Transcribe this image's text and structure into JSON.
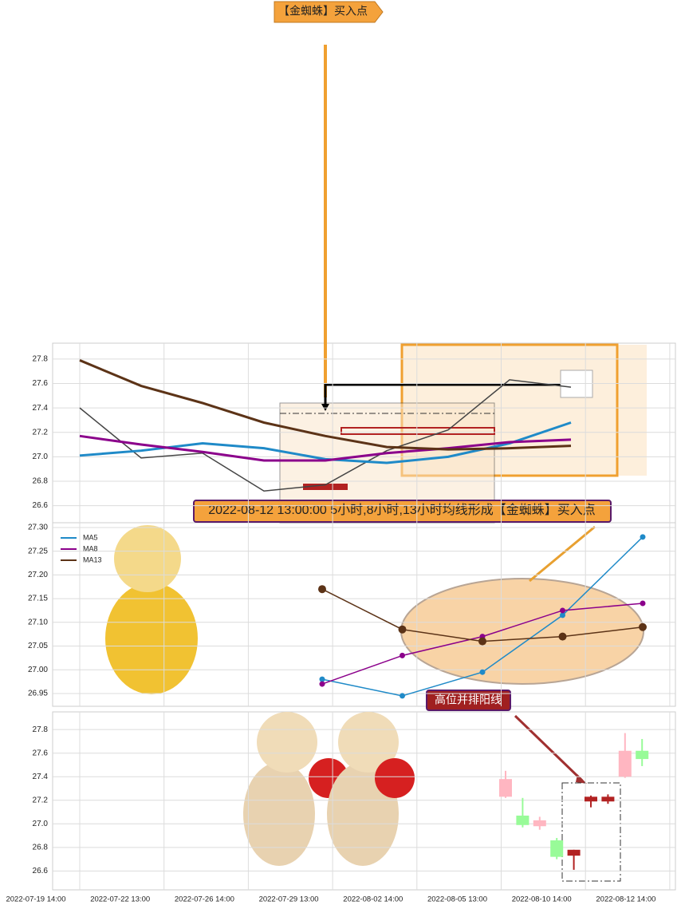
{
  "chart_data": [
    {
      "type": "line",
      "annotations": [
        "【金蜘蛛】买入点",
        "2022-08-12 13:00:00 5小时,8小时,13小时均线形成【金蜘蛛】买入点"
      ],
      "categories": [
        null,
        null,
        null,
        null,
        null,
        null,
        null,
        null,
        null
      ],
      "series": [
        {
          "color": "#444444",
          "values": [
            27.4,
            26.99,
            27.03,
            26.72,
            26.77,
            27.05,
            27.22,
            27.63,
            27.57
          ]
        },
        {
          "color": "#1f8ac8",
          "values": [
            27.01,
            27.05,
            27.11,
            27.07,
            26.98,
            26.95,
            27.0,
            27.11,
            27.28
          ]
        },
        {
          "color": "#8b008b",
          "values": [
            27.17,
            27.1,
            27.04,
            26.97,
            26.97,
            27.03,
            27.07,
            27.12,
            27.14
          ]
        },
        {
          "color": "#5c3317",
          "values": [
            27.79,
            27.58,
            27.44,
            27.28,
            27.17,
            27.08,
            27.06,
            27.07,
            27.09
          ]
        }
      ],
      "ylim": [
        26.46,
        27.93
      ],
      "yticks": [
        26.6,
        26.8,
        {
          "value": 27,
          "label": "27.0"
        },
        27.2,
        27.4,
        27.6,
        27.8
      ],
      "grid": true
    },
    {
      "type": "line",
      "categories": [
        null,
        null,
        null,
        null,
        null
      ],
      "series": [
        {
          "name": "MA5",
          "color": "#1f8ac8",
          "values": [
            26.98,
            26.945,
            26.995,
            27.115,
            27.28
          ]
        },
        {
          "name": "MA8",
          "color": "#8b008b",
          "values": [
            26.97,
            27.03,
            27.07,
            27.125,
            27.14
          ]
        },
        {
          "name": "MA13",
          "color": "#5c3317",
          "values": [
            27.17,
            27.085,
            27.06,
            27.07,
            27.09
          ]
        }
      ],
      "ylim": [
        26.923,
        27.31
      ],
      "yticks": [
        26.95,
        {
          "value": 27,
          "label": "27.00"
        },
        27.05,
        {
          "value": 27.1,
          "label": "27.10"
        },
        27.15,
        {
          "value": 27.2,
          "label": "27.20"
        },
        27.25,
        {
          "value": 27.3,
          "label": "27.30"
        }
      ],
      "grid": true,
      "legend": "upper left"
    },
    {
      "type": "candlestick",
      "annotations": [
        "高位并排阳线"
      ],
      "categories": [
        null,
        null,
        null,
        null,
        null,
        null,
        null,
        null,
        null
      ],
      "open": [
        27.23,
        27.07,
        26.98,
        26.86,
        26.73,
        27.19,
        27.19,
        27.4,
        27.55
      ],
      "close": [
        27.38,
        26.99,
        27.03,
        26.72,
        26.78,
        27.23,
        27.23,
        27.62,
        27.62
      ],
      "high": [
        27.45,
        27.22,
        27.06,
        26.88,
        26.78,
        27.24,
        27.25,
        27.77,
        27.72
      ],
      "low": [
        27.22,
        26.97,
        26.95,
        26.7,
        26.61,
        27.14,
        27.17,
        27.39,
        27.49
      ],
      "colors": [
        "#ffb6c1",
        "#98fb98",
        "#ffb6c1",
        "#98fb98",
        "#b22222",
        "#b22222",
        "#b22222",
        "#ffb6c1",
        "#98fb98"
      ],
      "ylim": [
        26.44,
        27.95
      ],
      "yticks": [
        26.6,
        26.8,
        {
          "value": 27,
          "label": "27.0"
        },
        27.2,
        27.4,
        27.6,
        27.8
      ],
      "xtick_labels": [
        "2022-07-19 14:00",
        "2022-07-22 13:00",
        "2022-07-26 14:00",
        "2022-07-29 13:00",
        "2022-08-02 14:00",
        "2022-08-05 13:00",
        "2022-08-10 14:00",
        "2022-08-12 14:00"
      ],
      "grid": true
    }
  ]
}
